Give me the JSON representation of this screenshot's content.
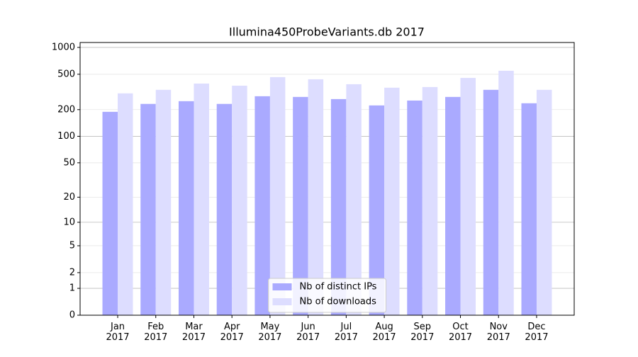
{
  "chart_data": {
    "type": "bar",
    "title": "Illumina450ProbeVariants.db 2017",
    "categories": [
      "Jan\n2017",
      "Feb\n2017",
      "Mar\n2017",
      "Apr\n2017",
      "May\n2017",
      "Jun\n2017",
      "Jul\n2017",
      "Aug\n2017",
      "Sep\n2017",
      "Oct\n2017",
      "Nov\n2017",
      "Dec\n2017"
    ],
    "series": [
      {
        "name": "Nb of distinct IPs",
        "color": "#aaaaff",
        "values": [
          189,
          232,
          249,
          232,
          283,
          278,
          263,
          223,
          253,
          278,
          334,
          236
        ]
      },
      {
        "name": "Nb of downloads",
        "color": "#ddddff",
        "values": [
          305,
          334,
          393,
          372,
          464,
          439,
          386,
          353,
          359,
          455,
          547,
          334
        ]
      }
    ],
    "yscale": "log1p",
    "ylim": [
      0,
      1135
    ],
    "yticks": [
      0,
      1,
      2,
      5,
      10,
      20,
      50,
      100,
      200,
      500,
      1000
    ],
    "grid": true,
    "legend": "lower center"
  }
}
